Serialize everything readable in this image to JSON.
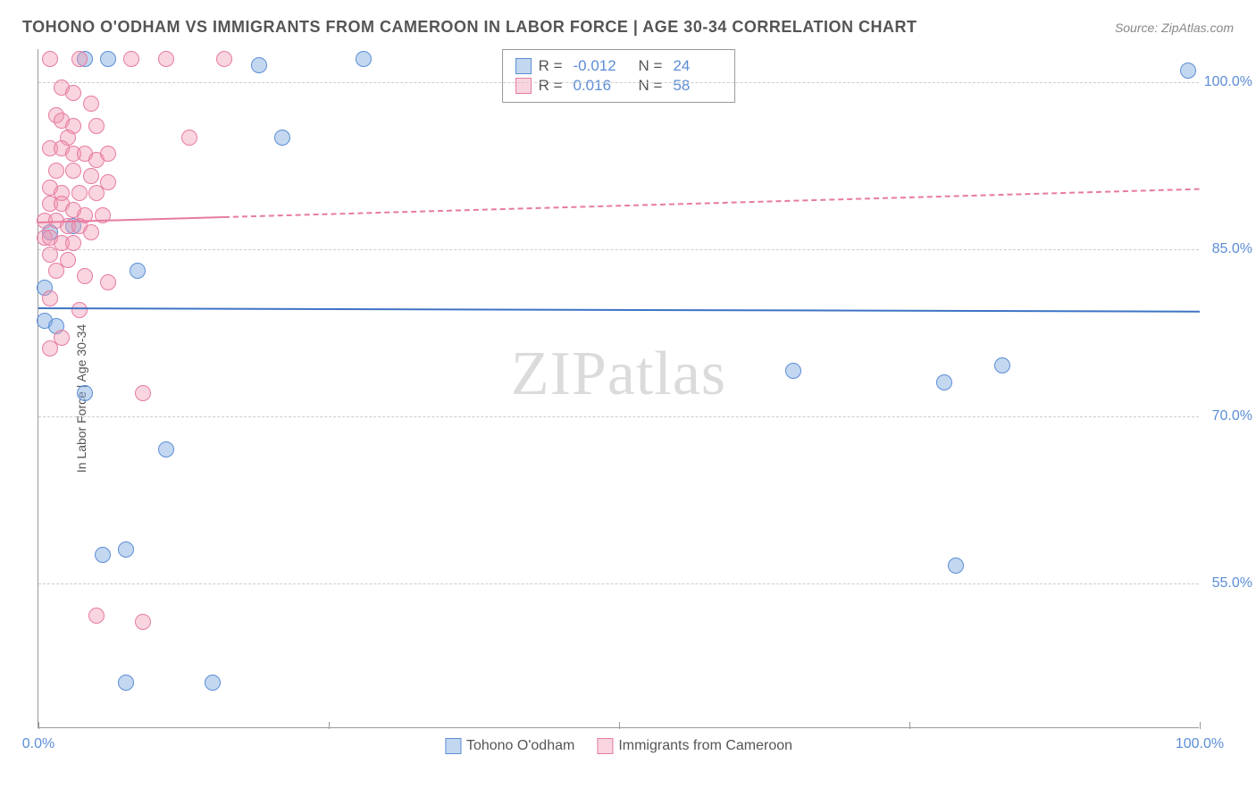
{
  "title": "TOHONO O'ODHAM VS IMMIGRANTS FROM CAMEROON IN LABOR FORCE | AGE 30-34 CORRELATION CHART",
  "source": "Source: ZipAtlas.com",
  "y_axis_label": "In Labor Force | Age 30-34",
  "watermark_a": "ZIP",
  "watermark_b": "atlas",
  "chart": {
    "type": "scatter",
    "xlim": [
      0,
      100
    ],
    "ylim": [
      42,
      103
    ],
    "background_color": "#ffffff",
    "grid_color": "#cccccc",
    "axis_color": "#999999",
    "tick_color": "#5b8dd6",
    "x_ticks": [
      0,
      25,
      50,
      75,
      100
    ],
    "x_tick_labels": [
      "0.0%",
      "",
      "",
      "",
      "100.0%"
    ],
    "y_grid": [
      55,
      70,
      85,
      100
    ],
    "y_tick_labels": [
      "55.0%",
      "70.0%",
      "85.0%",
      "100.0%"
    ],
    "series": [
      {
        "name": "Tohono O'odham",
        "color_fill": "rgba(122,168,222,0.45)",
        "color_stroke": "#5b8dd6",
        "trend_color": "#3d73c5",
        "R": "-0.012",
        "N": "24",
        "trend": {
          "x1": 0,
          "y1": 79.8,
          "x2": 100,
          "y2": 79.5,
          "dash_from_x": null
        },
        "points": [
          [
            4,
            102
          ],
          [
            6,
            102
          ],
          [
            19,
            101.5
          ],
          [
            28,
            102
          ],
          [
            99,
            101
          ],
          [
            21,
            95
          ],
          [
            3,
            87
          ],
          [
            1,
            86.5
          ],
          [
            8.5,
            83
          ],
          [
            0.5,
            81.5
          ],
          [
            0.5,
            78.5
          ],
          [
            1.5,
            78
          ],
          [
            4,
            72
          ],
          [
            11,
            67
          ],
          [
            65,
            74
          ],
          [
            83,
            74.5
          ],
          [
            78,
            73
          ],
          [
            5.5,
            57.5
          ],
          [
            7.5,
            58
          ],
          [
            79,
            56.5
          ],
          [
            7.5,
            46
          ],
          [
            15,
            46
          ]
        ]
      },
      {
        "name": "Immigrants from Cameroon",
        "color_fill": "rgba(240,150,175,0.4)",
        "color_stroke": "#e77ba0",
        "trend_color": "#e77ba0",
        "R": "0.016",
        "N": "58",
        "trend": {
          "x1": 0,
          "y1": 87.5,
          "x2": 100,
          "y2": 90.5,
          "dash_from_x": 16
        },
        "points": [
          [
            1,
            102
          ],
          [
            3.5,
            102
          ],
          [
            8,
            102
          ],
          [
            11,
            102
          ],
          [
            16,
            102
          ],
          [
            2,
            99.5
          ],
          [
            3,
            99
          ],
          [
            4.5,
            98
          ],
          [
            1.5,
            97
          ],
          [
            2,
            96.5
          ],
          [
            3,
            96
          ],
          [
            5,
            96
          ],
          [
            2.5,
            95
          ],
          [
            13,
            95
          ],
          [
            1,
            94
          ],
          [
            2,
            94
          ],
          [
            3,
            93.5
          ],
          [
            4,
            93.5
          ],
          [
            5,
            93
          ],
          [
            6,
            93.5
          ],
          [
            1.5,
            92
          ],
          [
            3,
            92
          ],
          [
            4.5,
            91.5
          ],
          [
            6,
            91
          ],
          [
            1,
            90.5
          ],
          [
            2,
            90
          ],
          [
            3.5,
            90
          ],
          [
            5,
            90
          ],
          [
            1,
            89
          ],
          [
            2,
            89
          ],
          [
            3,
            88.5
          ],
          [
            4,
            88
          ],
          [
            5.5,
            88
          ],
          [
            0.5,
            87.5
          ],
          [
            1.5,
            87.5
          ],
          [
            2.5,
            87
          ],
          [
            3.5,
            87
          ],
          [
            4.5,
            86.5
          ],
          [
            0.5,
            86
          ],
          [
            1,
            86
          ],
          [
            2,
            85.5
          ],
          [
            3,
            85.5
          ],
          [
            1,
            84.5
          ],
          [
            2.5,
            84
          ],
          [
            1.5,
            83
          ],
          [
            4,
            82.5
          ],
          [
            6,
            82
          ],
          [
            1,
            80.5
          ],
          [
            3.5,
            79.5
          ],
          [
            2,
            77
          ],
          [
            1,
            76
          ],
          [
            9,
            72
          ],
          [
            5,
            52
          ],
          [
            9,
            51.5
          ]
        ]
      }
    ]
  },
  "legend": {
    "rows": [
      {
        "swatch_fill": "rgba(122,168,222,0.45)",
        "swatch_stroke": "#5b8dd6",
        "r_label": "R =",
        "r": "-0.012",
        "n_label": "N =",
        "n": "24"
      },
      {
        "swatch_fill": "rgba(240,150,175,0.4)",
        "swatch_stroke": "#e77ba0",
        "r_label": "R =",
        "r": "0.016",
        "n_label": "N =",
        "n": "58"
      }
    ]
  },
  "bottom_legend": [
    {
      "swatch_fill": "rgba(122,168,222,0.45)",
      "swatch_stroke": "#5b8dd6",
      "label": "Tohono O'odham"
    },
    {
      "swatch_fill": "rgba(240,150,175,0.4)",
      "swatch_stroke": "#e77ba0",
      "label": "Immigrants from Cameroon"
    }
  ]
}
